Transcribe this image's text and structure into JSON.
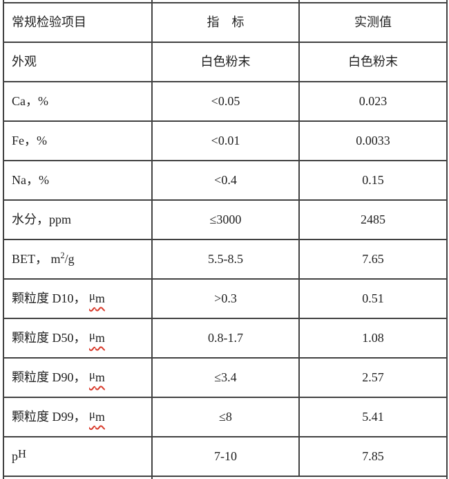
{
  "colors": {
    "border": "#414141",
    "text": "#1f1f1f",
    "squiggle_red": "#d93a2b",
    "background": "#ffffff"
  },
  "table": {
    "header": {
      "item": "常规检验项目",
      "spec": "指　标",
      "value": "实测值"
    },
    "rows": [
      {
        "item": "外观",
        "spec": "白色粉末",
        "value": "白色粉末"
      },
      {
        "item": "Ca，%",
        "spec": "<0.05",
        "value": "0.023"
      },
      {
        "item": "Fe，%",
        "spec": "<0.01",
        "value": "0.0033"
      },
      {
        "item": "Na，%",
        "spec": "<0.4",
        "value": "0.15"
      },
      {
        "item": "水分，ppm",
        "spec": "≤3000",
        "value": "2485"
      },
      {
        "item": [
          {
            "t": "BET， m"
          },
          {
            "t": "2",
            "s": "sup"
          },
          {
            "t": "/g"
          }
        ],
        "spec": "5.5-8.5",
        "value": "7.65"
      },
      {
        "item": [
          {
            "t": "颗粒度 D10， "
          },
          {
            "t": "μ",
            "s": "raised-squiggle"
          },
          {
            "t": "m",
            "s": "squiggle"
          }
        ],
        "spec": ">0.3",
        "value": "0.51"
      },
      {
        "item": [
          {
            "t": "颗粒度 D50， "
          },
          {
            "t": "μ",
            "s": "raised-squiggle"
          },
          {
            "t": "m",
            "s": "squiggle"
          }
        ],
        "spec": "0.8-1.7",
        "value": "1.08"
      },
      {
        "item": [
          {
            "t": "颗粒度 D90， "
          },
          {
            "t": "μ",
            "s": "raised-squiggle"
          },
          {
            "t": "m",
            "s": "squiggle"
          }
        ],
        "spec": "≤3.4",
        "value": "2.57"
      },
      {
        "item": [
          {
            "t": "颗粒度 D99， "
          },
          {
            "t": "μ",
            "s": "raised-squiggle"
          },
          {
            "t": "m",
            "s": "squiggle"
          }
        ],
        "spec": "≤8",
        "value": "5.41"
      },
      {
        "item": [
          {
            "t": "p"
          },
          {
            "t": "H",
            "s": "raised"
          }
        ],
        "spec": "7-10",
        "value": "7.85"
      }
    ]
  }
}
